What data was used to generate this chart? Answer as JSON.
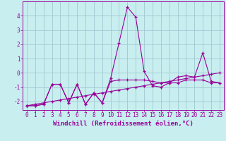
{
  "x": [
    0,
    1,
    2,
    3,
    4,
    5,
    6,
    7,
    8,
    9,
    10,
    11,
    12,
    13,
    14,
    15,
    16,
    17,
    18,
    19,
    20,
    21,
    22,
    23
  ],
  "series1": [
    -2.3,
    -2.3,
    -2.2,
    -0.8,
    -0.8,
    -2.1,
    -0.8,
    -2.2,
    -1.4,
    -2.1,
    -0.4,
    2.1,
    4.6,
    3.9,
    0.1,
    -0.9,
    -1.0,
    -0.7,
    -0.3,
    -0.2,
    -0.3,
    1.4,
    -0.6,
    -0.7
  ],
  "series2": [
    -2.3,
    -2.3,
    -2.2,
    -0.8,
    -0.8,
    -2.1,
    -0.8,
    -2.2,
    -1.4,
    -2.1,
    -0.6,
    -0.5,
    -0.5,
    -0.5,
    -0.5,
    -0.6,
    -0.7,
    -0.7,
    -0.7,
    -0.5,
    -0.5,
    -0.5,
    -0.7,
    -0.7
  ],
  "series3": [
    -2.3,
    -2.2,
    -2.1,
    -2.0,
    -1.9,
    -1.8,
    -1.7,
    -1.6,
    -1.5,
    -1.4,
    -1.3,
    -1.2,
    -1.1,
    -1.0,
    -0.9,
    -0.8,
    -0.7,
    -0.6,
    -0.5,
    -0.4,
    -0.3,
    -0.2,
    -0.1,
    0.0
  ],
  "line_color": "#990099",
  "marker": "+",
  "bg_color": "#c8eef0",
  "grid_color": "#a0c8d0",
  "xlabel": "Windchill (Refroidissement éolien,°C)",
  "xlabel_fontsize": 6.5,
  "tick_fontsize": 5.5,
  "ylim": [
    -2.6,
    5.0
  ],
  "yticks": [
    -2,
    -1,
    0,
    1,
    2,
    3,
    4
  ],
  "xticks": [
    0,
    1,
    2,
    3,
    4,
    5,
    6,
    7,
    8,
    9,
    10,
    11,
    12,
    13,
    14,
    15,
    16,
    17,
    18,
    19,
    20,
    21,
    22,
    23
  ]
}
